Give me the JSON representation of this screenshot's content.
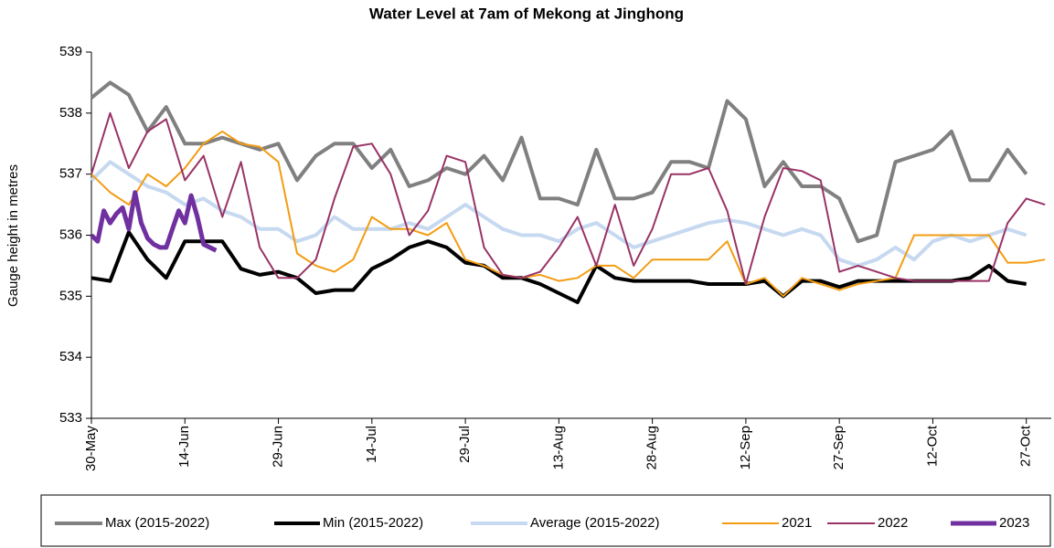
{
  "chart_data": {
    "type": "line",
    "title": "Water Level at 7am of Mekong at Jinghong",
    "y_label": "Gauge height in metres",
    "xlim": [
      0,
      154
    ],
    "xticks": [
      {
        "value": 0,
        "label": "30-May"
      },
      {
        "value": 15,
        "label": "14-Jun"
      },
      {
        "value": 30,
        "label": "29-Jun"
      },
      {
        "value": 45,
        "label": "14-Jul"
      },
      {
        "value": 60,
        "label": "29-Jul"
      },
      {
        "value": 75,
        "label": "13-Aug"
      },
      {
        "value": 90,
        "label": "28-Aug"
      },
      {
        "value": 105,
        "label": "12-Sep"
      },
      {
        "value": 120,
        "label": "27-Sep"
      },
      {
        "value": 135,
        "label": "12-Oct"
      },
      {
        "value": 150,
        "label": "27-Oct"
      }
    ],
    "ylim": [
      533,
      539
    ],
    "yticks": [
      533,
      534,
      535,
      536,
      537,
      538,
      539
    ],
    "x": [
      0,
      3,
      6,
      9,
      12,
      15,
      18,
      21,
      24,
      27,
      30,
      33,
      36,
      39,
      42,
      45,
      48,
      51,
      54,
      57,
      60,
      63,
      66,
      69,
      72,
      75,
      78,
      81,
      84,
      87,
      90,
      93,
      96,
      99,
      102,
      105,
      108,
      111,
      114,
      117,
      120,
      123,
      126,
      129,
      132,
      135,
      138,
      141,
      144,
      147,
      150,
      153
    ],
    "legend": "bottom",
    "series": [
      {
        "name": "Max (2015-2022)",
        "color": "#808080",
        "width": 4,
        "values": [
          538.25,
          538.5,
          538.3,
          537.7,
          538.1,
          537.5,
          537.5,
          537.6,
          537.5,
          537.4,
          537.5,
          536.9,
          537.3,
          537.5,
          537.5,
          537.1,
          537.4,
          536.8,
          536.9,
          537.1,
          537.0,
          537.3,
          536.9,
          537.6,
          536.6,
          536.6,
          536.5,
          537.4,
          536.6,
          536.6,
          536.7,
          537.2,
          537.2,
          537.1,
          538.2,
          537.9,
          536.8,
          537.2,
          536.8,
          536.8,
          536.6,
          535.9,
          536.0,
          537.2,
          537.3,
          537.4,
          537.7,
          536.9,
          536.9,
          537.4,
          537.0,
          null
        ]
      },
      {
        "name": "Min (2015-2022)",
        "color": "#000000",
        "width": 4,
        "values": [
          535.3,
          535.25,
          536.05,
          535.6,
          535.3,
          535.9,
          535.9,
          535.9,
          535.45,
          535.35,
          535.4,
          535.3,
          535.05,
          535.1,
          535.1,
          535.45,
          535.6,
          535.8,
          535.9,
          535.8,
          535.55,
          535.5,
          535.3,
          535.3,
          535.2,
          535.05,
          534.9,
          535.5,
          535.3,
          535.25,
          535.25,
          535.25,
          535.25,
          535.2,
          535.2,
          535.2,
          535.25,
          535.0,
          535.25,
          535.25,
          535.15,
          535.25,
          535.25,
          535.25,
          535.25,
          535.25,
          535.25,
          535.3,
          535.5,
          535.25,
          535.2,
          null
        ]
      },
      {
        "name": "Average (2015-2022)",
        "color": "#c6d9f0",
        "width": 4,
        "values": [
          536.9,
          537.2,
          537.0,
          536.8,
          536.7,
          536.5,
          536.6,
          536.4,
          536.3,
          536.1,
          536.1,
          535.9,
          536.0,
          536.3,
          536.1,
          536.1,
          536.1,
          536.2,
          536.1,
          536.3,
          536.5,
          536.3,
          536.1,
          536.0,
          536.0,
          535.9,
          536.1,
          536.2,
          536.0,
          535.8,
          535.9,
          536.0,
          536.1,
          536.2,
          536.25,
          536.2,
          536.1,
          536.0,
          536.1,
          536.0,
          535.6,
          535.5,
          535.6,
          535.8,
          535.6,
          535.9,
          536.0,
          535.9,
          536.0,
          536.1,
          536.0,
          null
        ]
      },
      {
        "name": "2021",
        "color": "#f39c12",
        "width": 2,
        "values": [
          537.0,
          536.7,
          536.5,
          537.0,
          536.8,
          537.1,
          537.5,
          537.7,
          537.5,
          537.45,
          537.2,
          535.7,
          535.5,
          535.4,
          535.6,
          536.3,
          536.1,
          536.1,
          536.0,
          536.2,
          535.6,
          535.5,
          535.35,
          535.3,
          535.35,
          535.25,
          535.3,
          535.5,
          535.5,
          535.3,
          535.6,
          535.6,
          535.6,
          535.6,
          535.9,
          535.2,
          535.3,
          535.0,
          535.3,
          535.2,
          535.1,
          535.2,
          535.25,
          535.3,
          536.0,
          536.0,
          536.0,
          536.0,
          536.0,
          535.55,
          535.55,
          535.6
        ]
      },
      {
        "name": "2022",
        "color": "#993366",
        "width": 2,
        "values": [
          537.0,
          538.0,
          537.1,
          537.7,
          537.9,
          536.9,
          537.3,
          536.3,
          537.2,
          535.8,
          535.3,
          535.3,
          535.6,
          536.6,
          537.45,
          537.5,
          537.0,
          536.0,
          536.4,
          537.3,
          537.2,
          535.8,
          535.35,
          535.3,
          535.4,
          535.8,
          536.3,
          535.5,
          536.5,
          535.5,
          536.1,
          537.0,
          537.0,
          537.1,
          536.4,
          535.2,
          536.3,
          537.1,
          537.05,
          536.9,
          535.4,
          535.5,
          535.4,
          535.3,
          535.25,
          535.25,
          535.25,
          535.25,
          535.25,
          536.2,
          536.6,
          536.5
        ]
      },
      {
        "name": "2023",
        "color": "#7030a0",
        "width": 5,
        "x": [
          0,
          1,
          2,
          3,
          4,
          5,
          6,
          7,
          8,
          9,
          10,
          11,
          12,
          13,
          14,
          15,
          16,
          17,
          18,
          19,
          20
        ],
        "values": [
          536.0,
          535.9,
          536.4,
          536.2,
          536.35,
          536.45,
          536.1,
          536.7,
          536.2,
          535.95,
          535.85,
          535.8,
          535.8,
          536.1,
          536.4,
          536.2,
          536.65,
          536.3,
          535.85,
          535.8,
          535.75
        ]
      }
    ]
  }
}
